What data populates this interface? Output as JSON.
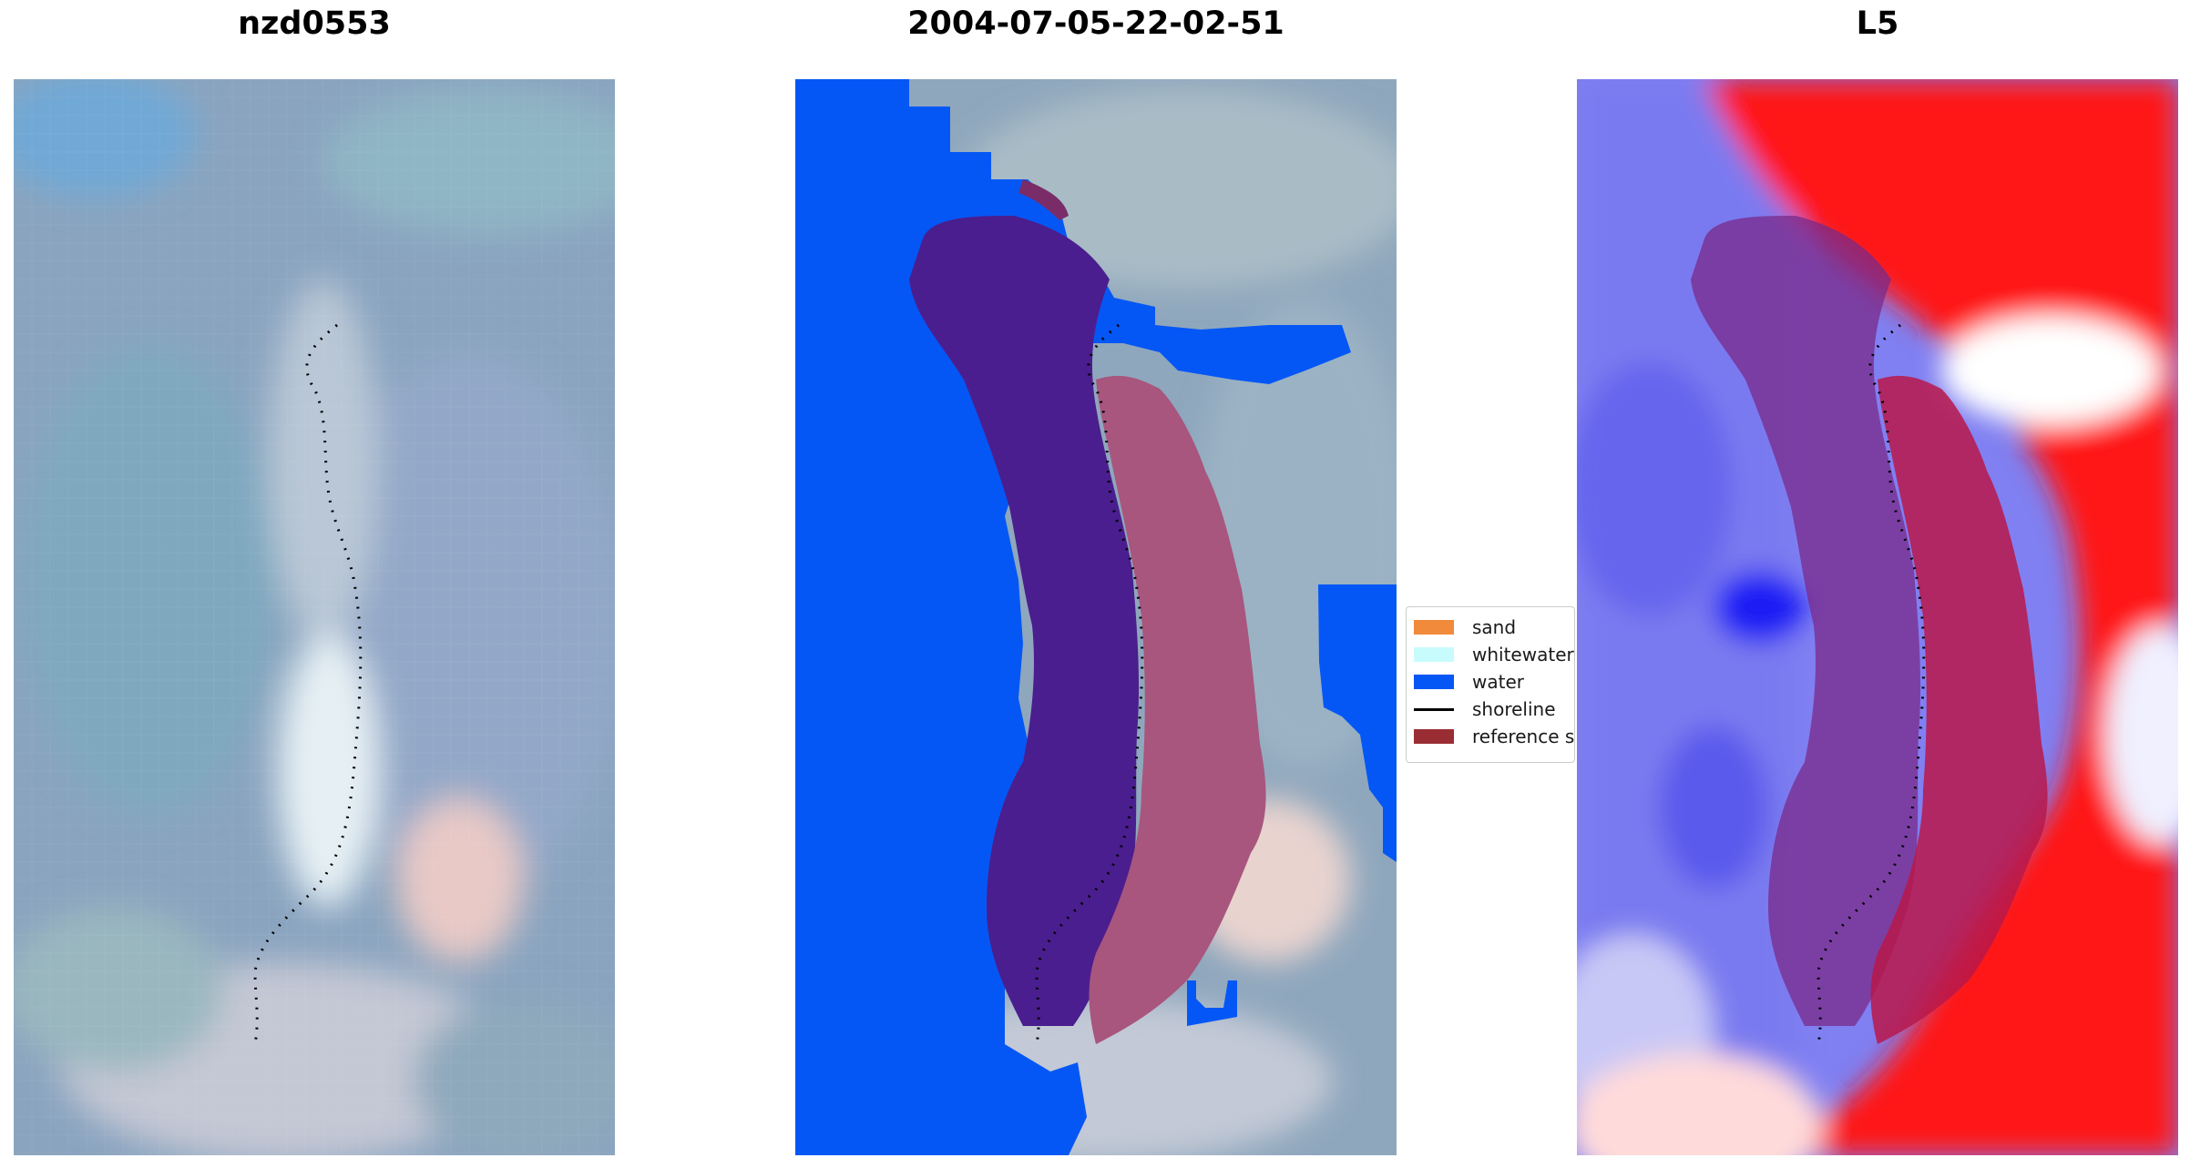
{
  "titles": {
    "left": "nzd0553",
    "middle": "2004-07-05-22-02-51",
    "right": "L5"
  },
  "legend": {
    "items": [
      {
        "key": "sand",
        "label": "sand",
        "color": "#f28a3c",
        "kind": "patch"
      },
      {
        "key": "whitewater",
        "label": "whitewater",
        "color": "#c8fcfc",
        "kind": "patch"
      },
      {
        "key": "water",
        "label": "water",
        "color": "#0557f5",
        "kind": "patch"
      },
      {
        "key": "shoreline",
        "label": "shoreline",
        "color": "#000000",
        "kind": "line"
      },
      {
        "key": "reference",
        "label": "reference sl",
        "color": "#9a2d34",
        "kind": "patch"
      }
    ]
  },
  "colors": {
    "water": "#0557f5",
    "land_purple": "#4a1e8e",
    "land_pink": "#a8567e",
    "index_red": "#ff1a1a",
    "index_blue": "#5e5ef0",
    "rgb_base": "#8aa6c0"
  }
}
